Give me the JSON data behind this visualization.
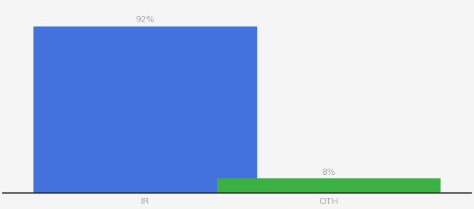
{
  "categories": [
    "IR",
    "OTH"
  ],
  "values": [
    92,
    8
  ],
  "bar_colors": [
    "#4472dd",
    "#3cb043"
  ],
  "label_texts": [
    "92%",
    "8%"
  ],
  "background_color": "#f5f5f5",
  "ylim": [
    0,
    105
  ],
  "bar_width": 0.55,
  "label_fontsize": 9,
  "tick_fontsize": 9.5,
  "tick_color": "#aaaaaa",
  "label_color": "#aaaaaa",
  "spine_color": "#222222",
  "x_positions": [
    0.3,
    0.75
  ]
}
